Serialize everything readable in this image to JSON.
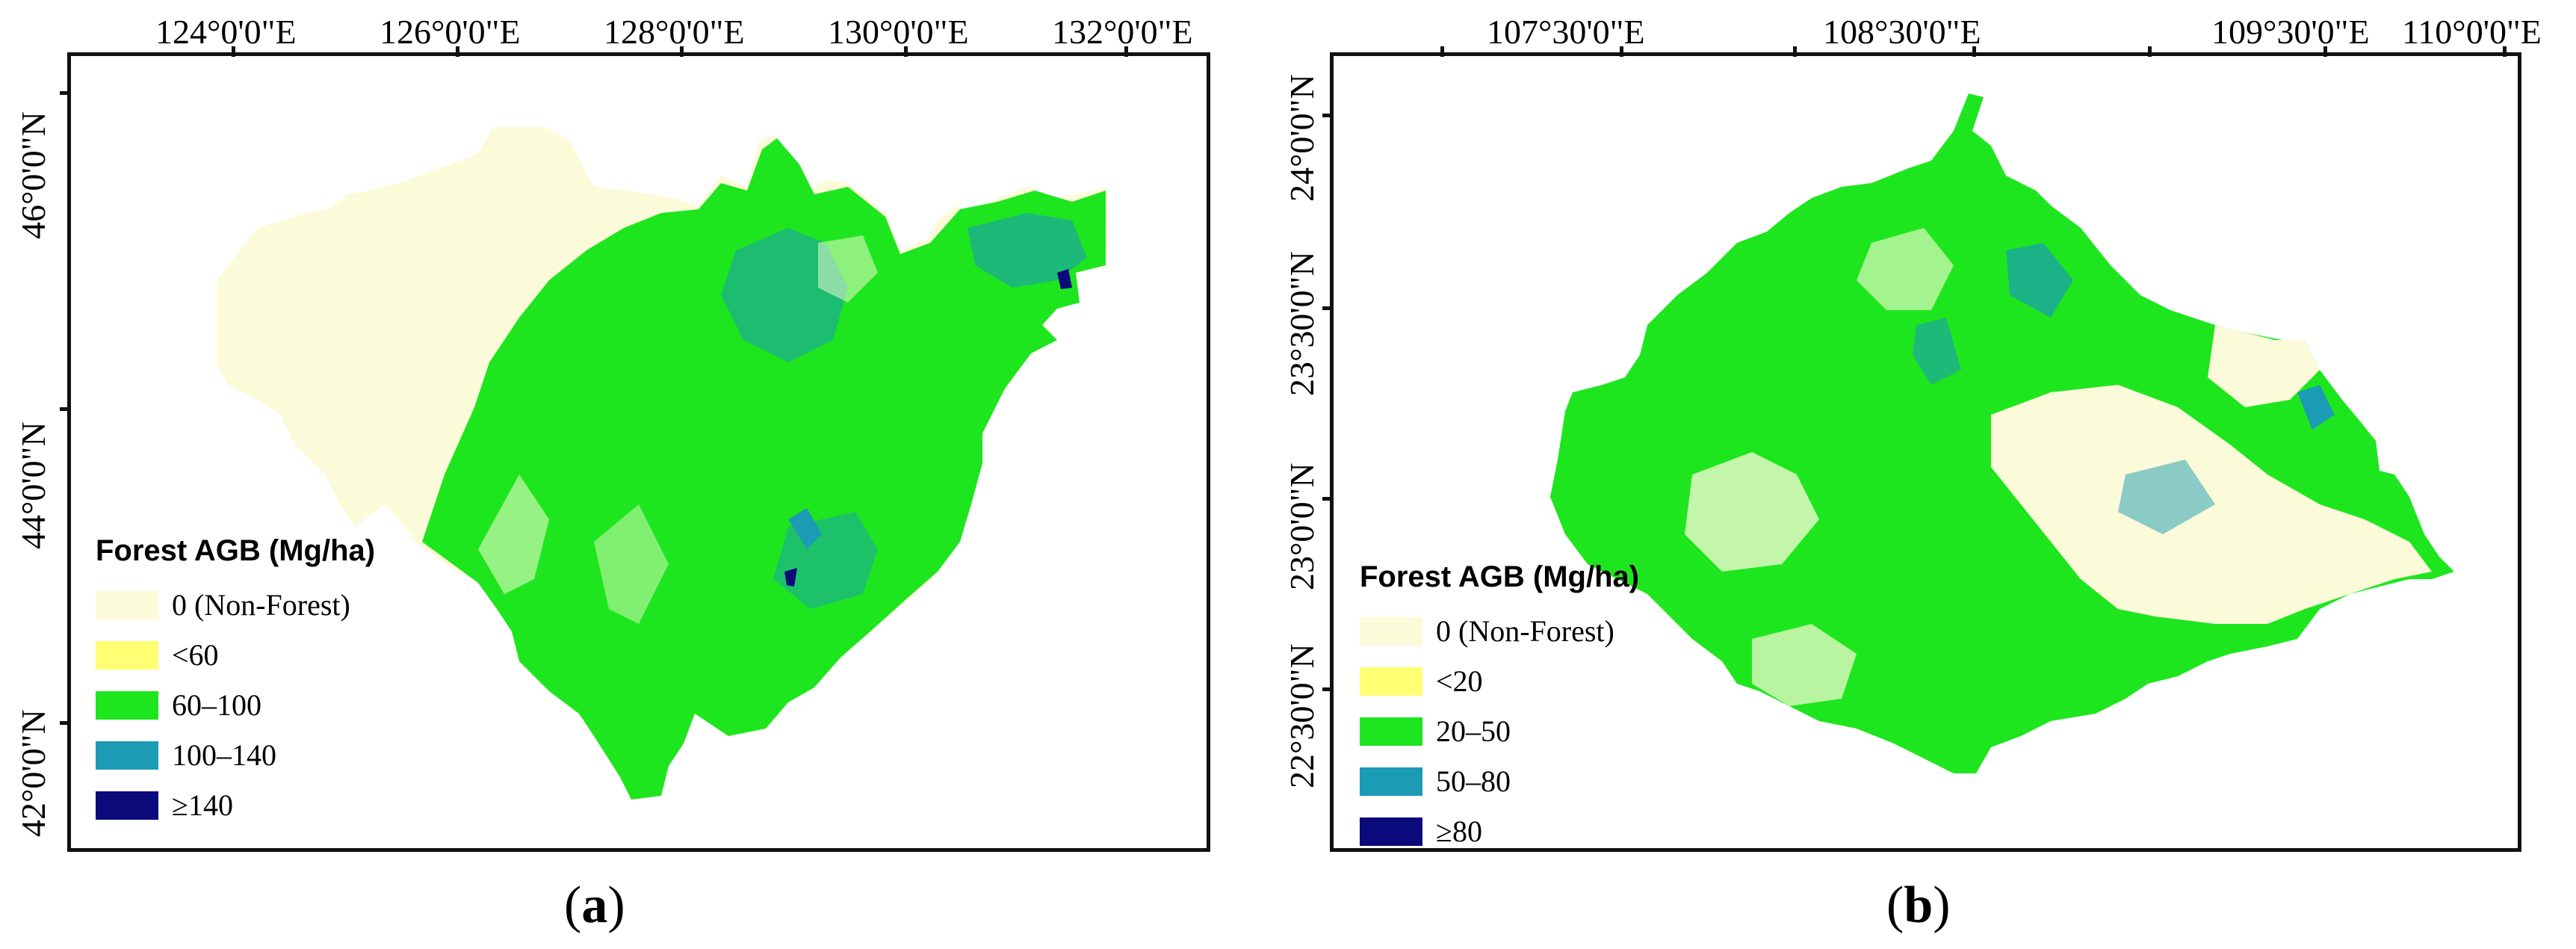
{
  "panels": [
    {
      "id": "a",
      "caption_open": "(",
      "caption_letter": "a",
      "caption_close": ")",
      "lon_labels": [
        "124°0'0\"E",
        "126°0'0\"E",
        "128°0'0\"E",
        "130°0'0\"E",
        "132°0'0\"E"
      ],
      "lat_labels": [
        "46°0'0\"N",
        "44°0'0\"N",
        "42°0'0\"N"
      ],
      "legend": {
        "title": "Forest AGB (Mg/ha)",
        "items": [
          {
            "label": "0 (Non-Forest)",
            "color": "#fbfbd9"
          },
          {
            "label": "<60",
            "color": "#ffff73"
          },
          {
            "label": "60–100",
            "color": "#1ee61e"
          },
          {
            "label": "100–140",
            "color": "#1b9bb4"
          },
          {
            "label": "≥140",
            "color": "#0a0a7a"
          }
        ]
      }
    },
    {
      "id": "b",
      "caption_open": "(",
      "caption_letter": "b",
      "caption_close": ")",
      "lon_labels": [
        "107°30'0\"E",
        "108°30'0\"E",
        "109°30'0\"E",
        "110°0'0\"E"
      ],
      "lat_labels": [
        "24°0'0\"N",
        "23°30'0\"N",
        "23°0'0\"N",
        "22°30'0\"N"
      ],
      "legend": {
        "title": "Forest AGB (Mg/ha)",
        "items": [
          {
            "label": "0 (Non-Forest)",
            "color": "#fbfbd9"
          },
          {
            "label": "<20",
            "color": "#ffff73"
          },
          {
            "label": "20–50",
            "color": "#1ee61e"
          },
          {
            "label": "50–80",
            "color": "#1b9bb4"
          },
          {
            "label": "≥80",
            "color": "#0a0a7a"
          }
        ]
      }
    }
  ]
}
